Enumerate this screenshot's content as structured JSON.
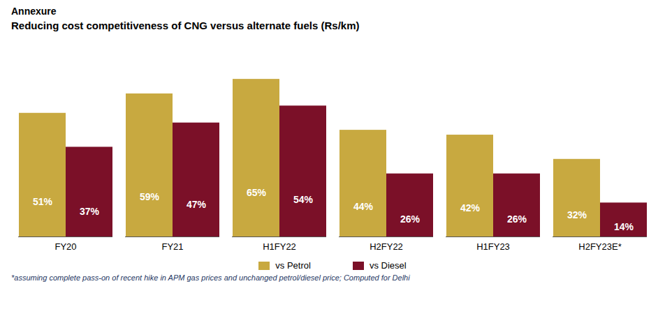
{
  "chart_data": {
    "type": "bar",
    "title": "Annexure",
    "subtitle": "Reducing cost competitiveness of CNG versus alternate fuels (Rs/km)",
    "caption": "*assuming complete pass-on of recent hike in APM gas prices and unchanged petrol/diesel price; Computed for Delhi",
    "categories": [
      "FY20",
      "FY21",
      "H1FY22",
      "H2FY22",
      "H1FY23",
      "H2FY23E*"
    ],
    "series": [
      {
        "name": "vs Petrol",
        "color": "#C8A940",
        "values": [
          51,
          59,
          65,
          44,
          42,
          32
        ],
        "value_labels": [
          "51%",
          "59%",
          "65%",
          "44%",
          "42%",
          "32%"
        ]
      },
      {
        "name": "vs Diesel",
        "color": "#7B1028",
        "values": [
          37,
          47,
          54,
          26,
          26,
          14
        ],
        "value_labels": [
          "37%",
          "47%",
          "54%",
          "26%",
          "26%",
          "14%"
        ]
      }
    ],
    "ylim": [
      0,
      80
    ],
    "grid": false,
    "legend": "bottom",
    "data_labels": true,
    "tick_labels": "x"
  }
}
